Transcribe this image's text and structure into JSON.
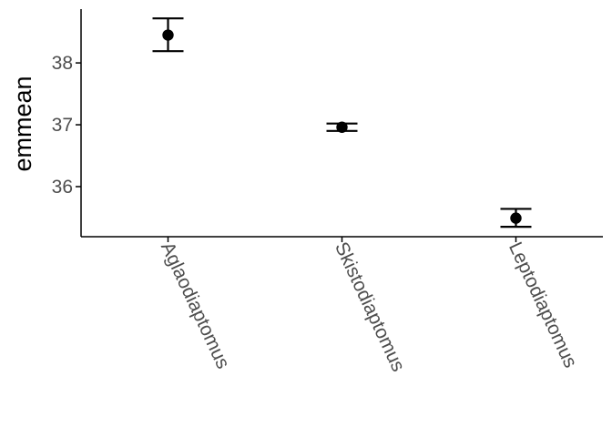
{
  "chart_data": {
    "type": "scatter",
    "title": "",
    "xlabel": "",
    "ylabel": "emmean",
    "categories": [
      "Aglaodiaptomus",
      "Skistodiaptomus",
      "Leptodiaptomus"
    ],
    "series": [
      {
        "values": [
          38.45,
          36.96,
          35.49
        ],
        "lower": [
          38.19,
          36.9,
          35.35
        ],
        "upper": [
          38.72,
          37.02,
          35.64
        ]
      }
    ],
    "yticks": [
      36,
      37,
      38
    ],
    "ylim": [
      35.19,
      38.87
    ],
    "grid": false,
    "legend": "none",
    "colors": {
      "point": "#000000",
      "axis": "#000000",
      "tick_text": "#4d4d4d"
    }
  }
}
